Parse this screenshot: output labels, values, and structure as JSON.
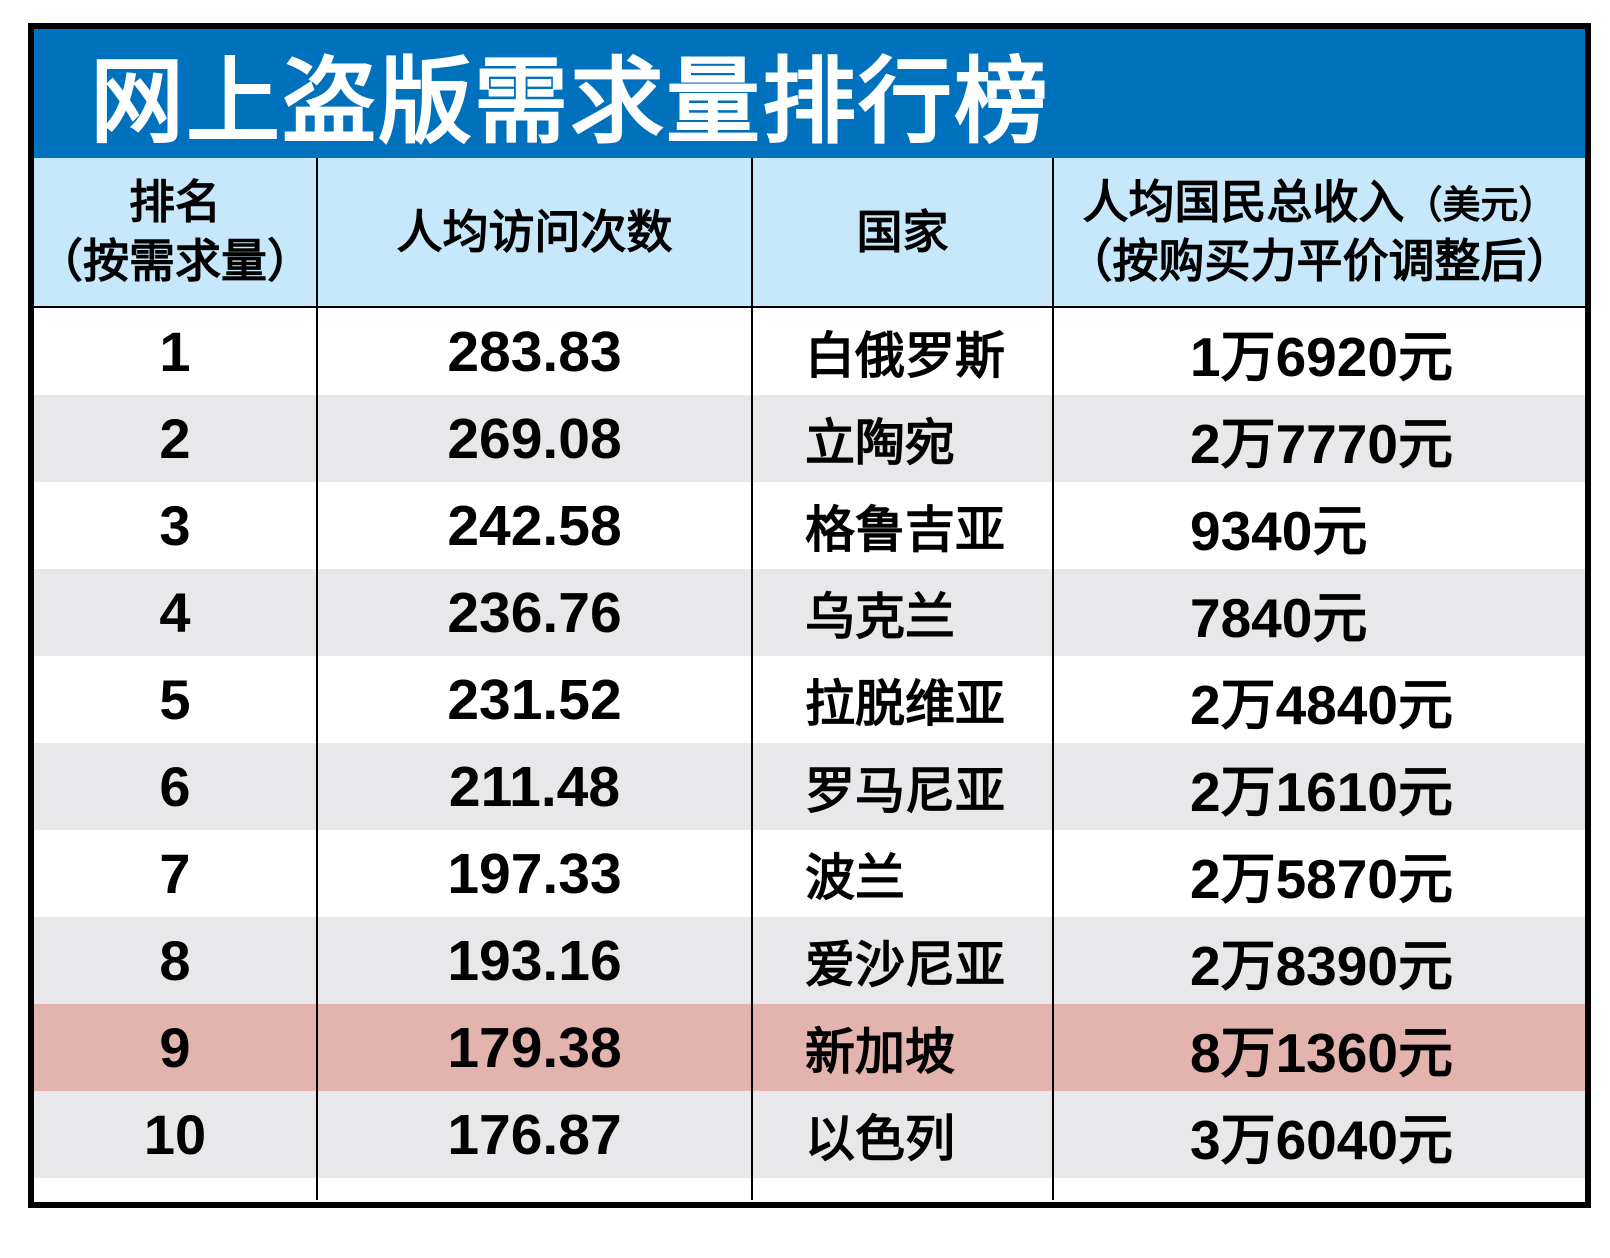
{
  "chart_data": {
    "type": "table",
    "title": "网上盗版需求量排行榜",
    "columns": [
      {
        "id": "rank",
        "label_line1": "排名",
        "label_line2": "（按需求量）"
      },
      {
        "id": "visits",
        "label": "人均访问次数"
      },
      {
        "id": "country",
        "label": "国家"
      },
      {
        "id": "income",
        "label_main": "人均国民总收入",
        "label_unit": "（美元）",
        "label_line2": "（按购买力平价调整后）"
      }
    ],
    "rows": [
      {
        "rank": "1",
        "visits": "283.83",
        "country": "白俄罗斯",
        "income": "1万6920元",
        "highlight": false
      },
      {
        "rank": "2",
        "visits": "269.08",
        "country": "立陶宛",
        "income": "2万7770元",
        "highlight": false
      },
      {
        "rank": "3",
        "visits": "242.58",
        "country": "格鲁吉亚",
        "income": "9340元",
        "highlight": false
      },
      {
        "rank": "4",
        "visits": "236.76",
        "country": "乌克兰",
        "income": "7840元",
        "highlight": false
      },
      {
        "rank": "5",
        "visits": "231.52",
        "country": "拉脱维亚",
        "income": "2万4840元",
        "highlight": false
      },
      {
        "rank": "6",
        "visits": "211.48",
        "country": "罗马尼亚",
        "income": "2万1610元",
        "highlight": false
      },
      {
        "rank": "7",
        "visits": "197.33",
        "country": "波兰",
        "income": "2万5870元",
        "highlight": false
      },
      {
        "rank": "8",
        "visits": "193.16",
        "country": "爱沙尼亚",
        "income": "2万8390元",
        "highlight": false
      },
      {
        "rank": "9",
        "visits": "179.38",
        "country": "新加坡",
        "income": "8万1360元",
        "highlight": true
      },
      {
        "rank": "10",
        "visits": "176.87",
        "country": "以色列",
        "income": "3万6040元",
        "highlight": false
      }
    ]
  },
  "colors": {
    "title_bg": "#0071bc",
    "header_bg": "#c7e8fa",
    "alt_row_bg": "#e8e7e9",
    "highlight_row_bg": "#e3b3ae",
    "border": "#000000",
    "title_text": "#ffffff"
  }
}
